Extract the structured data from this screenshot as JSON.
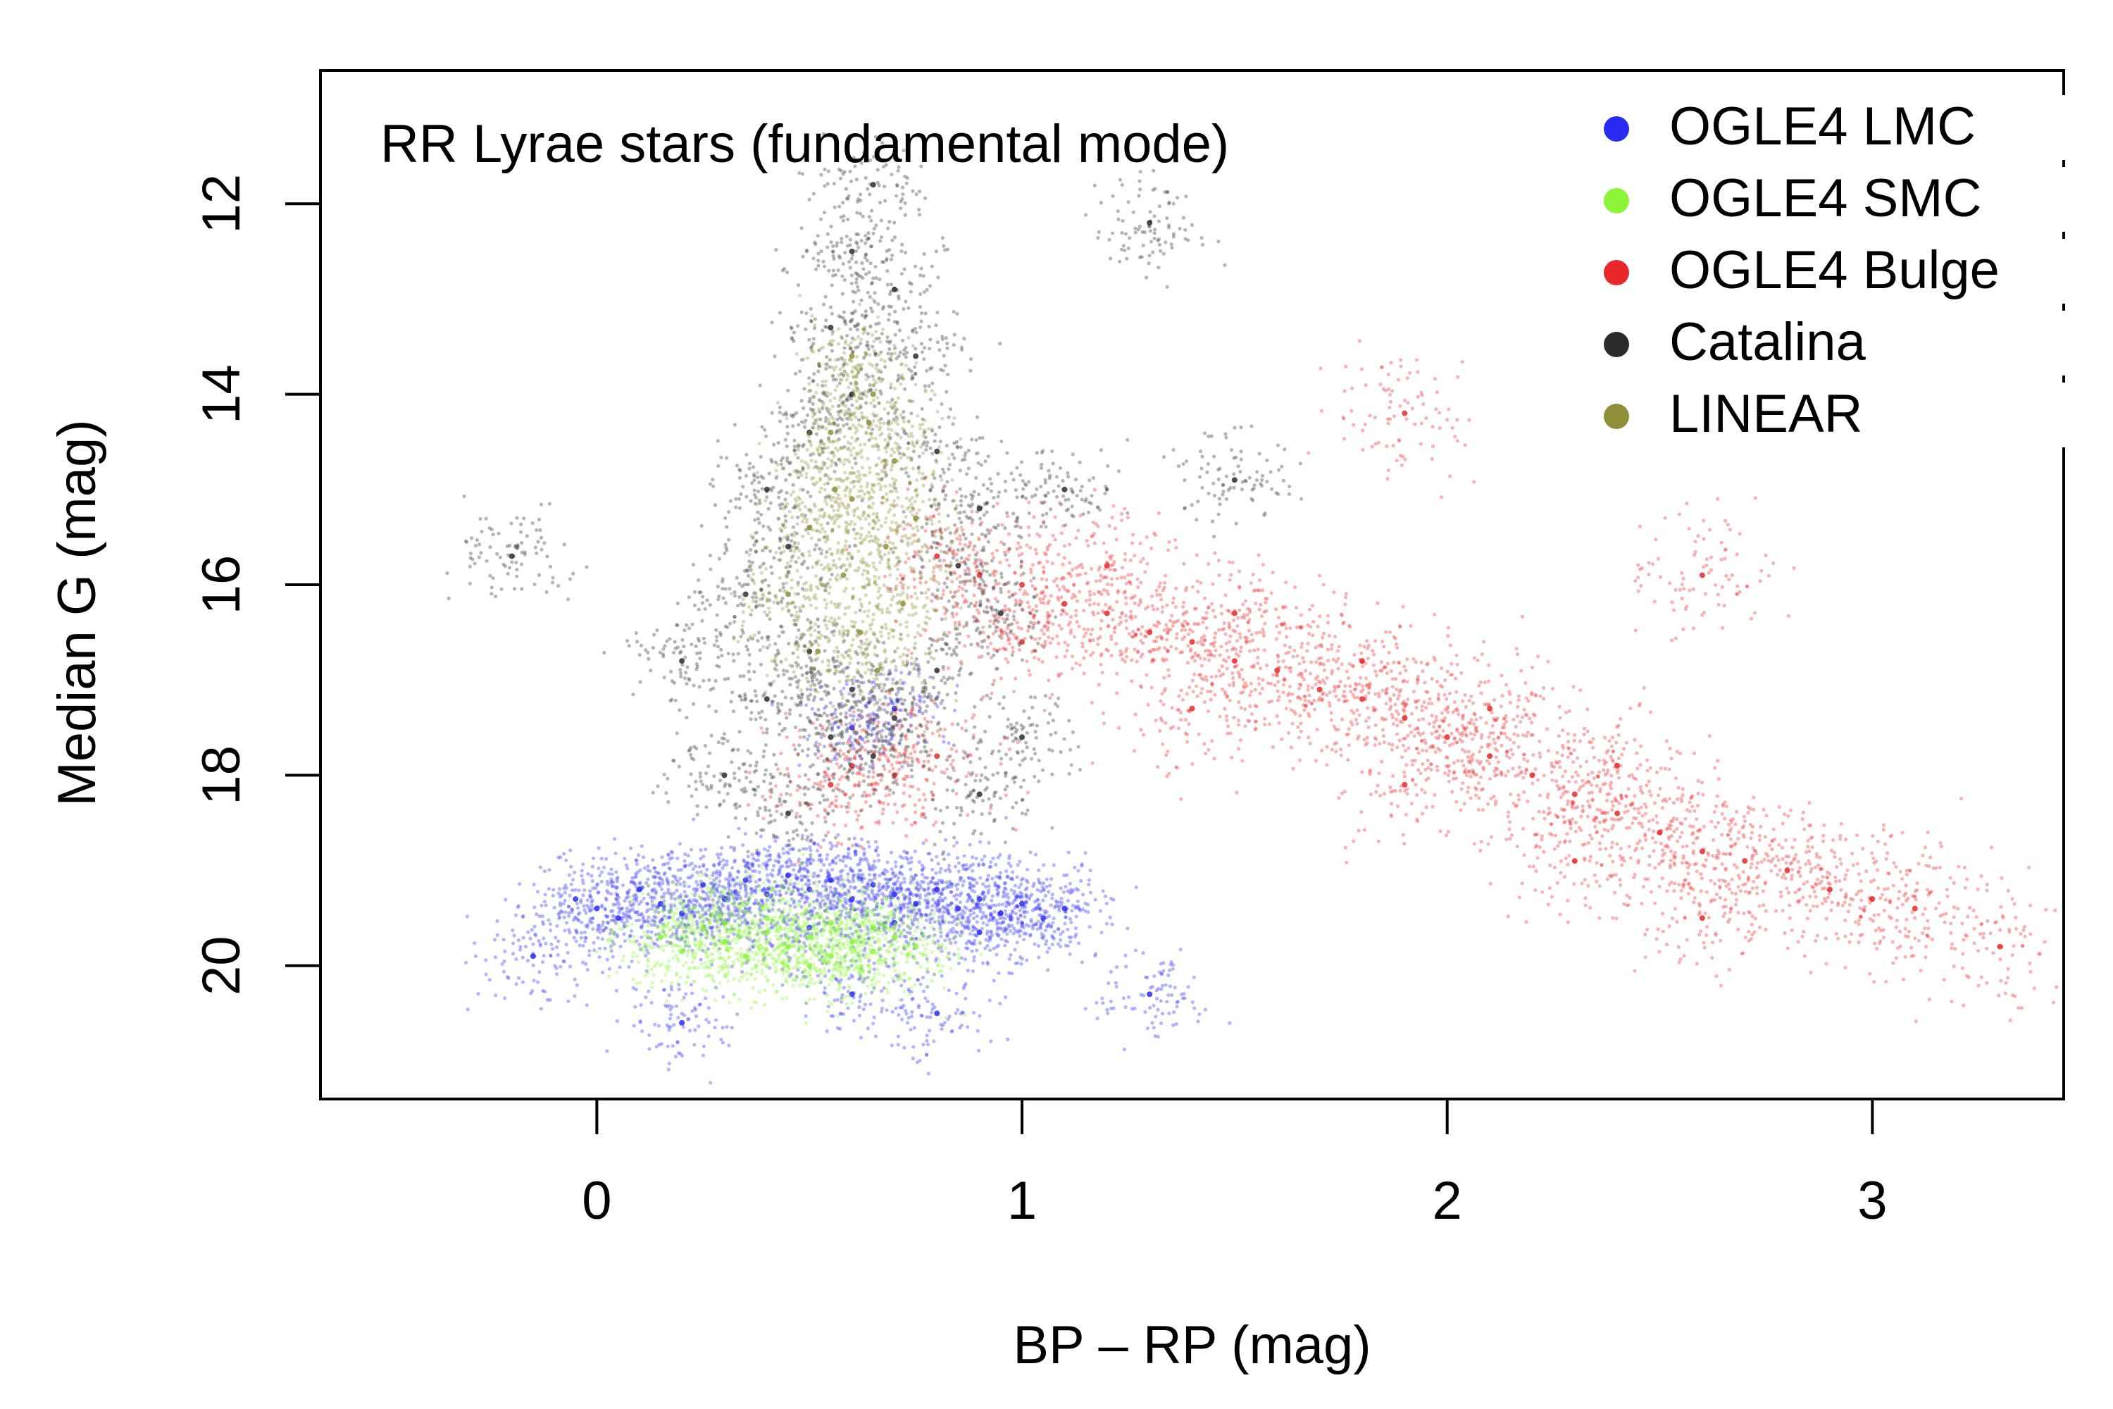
{
  "chart_data": {
    "type": "scatter",
    "title": "RR Lyrae stars (fundamental mode)",
    "xlabel": "BP – RP (mag)",
    "ylabel": "Median G (mag)",
    "xlim": [
      -0.65,
      3.45
    ],
    "ylim": [
      21.4,
      10.6
    ],
    "y_inverted": true,
    "grid": false,
    "legend_position": "top-right",
    "x_ticks": [
      0,
      1,
      2,
      3
    ],
    "y_ticks": [
      12,
      14,
      16,
      18,
      20
    ],
    "series": [
      {
        "name": "OGLE4 LMC",
        "color": "#2a2af5",
        "points": [
          [
            -0.05,
            19.3
          ],
          [
            0.0,
            19.4
          ],
          [
            0.05,
            19.5
          ],
          [
            0.1,
            19.2
          ],
          [
            0.15,
            19.35
          ],
          [
            0.2,
            19.45
          ],
          [
            0.25,
            19.15
          ],
          [
            0.3,
            19.3
          ],
          [
            0.35,
            19.1
          ],
          [
            0.4,
            19.25
          ],
          [
            0.45,
            19.05
          ],
          [
            0.5,
            19.2
          ],
          [
            0.55,
            19.1
          ],
          [
            0.6,
            19.3
          ],
          [
            0.65,
            19.15
          ],
          [
            0.7,
            19.25
          ],
          [
            0.75,
            19.35
          ],
          [
            0.8,
            19.2
          ],
          [
            0.85,
            19.4
          ],
          [
            0.9,
            19.3
          ],
          [
            0.95,
            19.45
          ],
          [
            1.0,
            19.35
          ],
          [
            1.05,
            19.5
          ],
          [
            1.1,
            19.4
          ],
          [
            0.3,
            19.55
          ],
          [
            0.5,
            19.6
          ],
          [
            0.7,
            19.55
          ],
          [
            0.9,
            19.65
          ],
          [
            0.6,
            17.5
          ],
          [
            0.7,
            17.3
          ],
          [
            0.6,
            20.3
          ],
          [
            0.8,
            20.5
          ],
          [
            1.3,
            20.3
          ],
          [
            -0.15,
            19.9
          ],
          [
            0.2,
            20.6
          ]
        ]
      },
      {
        "name": "OGLE4 SMC",
        "color": "#8cf53a",
        "points": [
          [
            0.15,
            19.7
          ],
          [
            0.2,
            19.85
          ],
          [
            0.25,
            19.6
          ],
          [
            0.3,
            19.75
          ],
          [
            0.35,
            19.9
          ],
          [
            0.4,
            19.65
          ],
          [
            0.45,
            19.8
          ],
          [
            0.5,
            19.7
          ],
          [
            0.55,
            19.55
          ],
          [
            0.6,
            19.75
          ],
          [
            0.65,
            19.6
          ],
          [
            0.7,
            19.7
          ],
          [
            0.75,
            19.8
          ],
          [
            0.4,
            19.5
          ],
          [
            0.55,
            19.9
          ],
          [
            0.3,
            19.55
          ],
          [
            0.65,
            19.85
          ],
          [
            0.5,
            20.0
          ]
        ]
      },
      {
        "name": "OGLE4 Bulge",
        "color": "#e8282a",
        "points": [
          [
            0.8,
            15.7
          ],
          [
            0.9,
            15.9
          ],
          [
            1.0,
            16.0
          ],
          [
            1.1,
            16.2
          ],
          [
            1.2,
            16.3
          ],
          [
            1.3,
            16.5
          ],
          [
            1.4,
            16.6
          ],
          [
            1.5,
            16.8
          ],
          [
            1.6,
            16.9
          ],
          [
            1.7,
            17.1
          ],
          [
            1.8,
            17.2
          ],
          [
            1.9,
            17.4
          ],
          [
            2.0,
            17.6
          ],
          [
            2.1,
            17.8
          ],
          [
            2.2,
            18.0
          ],
          [
            2.3,
            18.2
          ],
          [
            2.4,
            18.4
          ],
          [
            2.5,
            18.6
          ],
          [
            2.6,
            18.8
          ],
          [
            2.7,
            18.9
          ],
          [
            2.8,
            19.0
          ],
          [
            2.9,
            19.2
          ],
          [
            3.0,
            19.3
          ],
          [
            3.1,
            19.4
          ],
          [
            1.2,
            15.8
          ],
          [
            1.5,
            16.3
          ],
          [
            1.8,
            16.8
          ],
          [
            2.1,
            17.3
          ],
          [
            2.4,
            17.9
          ],
          [
            1.0,
            16.6
          ],
          [
            1.4,
            17.3
          ],
          [
            1.9,
            18.1
          ],
          [
            2.3,
            18.9
          ],
          [
            2.6,
            19.5
          ],
          [
            0.6,
            17.9
          ],
          [
            0.7,
            18.0
          ],
          [
            0.8,
            17.8
          ],
          [
            0.55,
            18.1
          ],
          [
            3.3,
            19.8
          ],
          [
            1.9,
            14.2
          ],
          [
            2.6,
            15.9
          ]
        ]
      },
      {
        "name": "Catalina",
        "color": "#2b2b2b",
        "points": [
          [
            0.65,
            11.8
          ],
          [
            0.6,
            12.5
          ],
          [
            0.7,
            12.9
          ],
          [
            0.55,
            13.3
          ],
          [
            0.75,
            13.6
          ],
          [
            0.6,
            14.0
          ],
          [
            0.5,
            14.4
          ],
          [
            0.8,
            14.6
          ],
          [
            0.4,
            15.0
          ],
          [
            0.9,
            15.2
          ],
          [
            0.45,
            15.6
          ],
          [
            0.85,
            15.8
          ],
          [
            0.35,
            16.1
          ],
          [
            0.95,
            16.3
          ],
          [
            0.5,
            16.7
          ],
          [
            0.8,
            16.9
          ],
          [
            0.4,
            17.2
          ],
          [
            0.7,
            17.4
          ],
          [
            0.55,
            17.6
          ],
          [
            0.6,
            17.1
          ],
          [
            0.65,
            17.8
          ],
          [
            0.3,
            18.0
          ],
          [
            0.9,
            18.2
          ],
          [
            1.1,
            15.0
          ],
          [
            0.2,
            16.8
          ],
          [
            1.3,
            12.2
          ],
          [
            1.5,
            14.9
          ],
          [
            -0.2,
            15.7
          ],
          [
            1.0,
            17.6
          ],
          [
            0.45,
            18.4
          ]
        ]
      },
      {
        "name": "LINEAR",
        "color": "#8f8f3a",
        "points": [
          [
            0.6,
            13.6
          ],
          [
            0.65,
            14.0
          ],
          [
            0.55,
            14.4
          ],
          [
            0.7,
            14.7
          ],
          [
            0.6,
            15.1
          ],
          [
            0.5,
            15.4
          ],
          [
            0.68,
            15.6
          ],
          [
            0.58,
            15.9
          ],
          [
            0.72,
            16.2
          ],
          [
            0.62,
            16.5
          ],
          [
            0.52,
            16.7
          ],
          [
            0.66,
            16.9
          ],
          [
            0.56,
            15.0
          ],
          [
            0.64,
            14.3
          ],
          [
            0.45,
            16.1
          ],
          [
            0.75,
            15.3
          ]
        ]
      }
    ]
  }
}
